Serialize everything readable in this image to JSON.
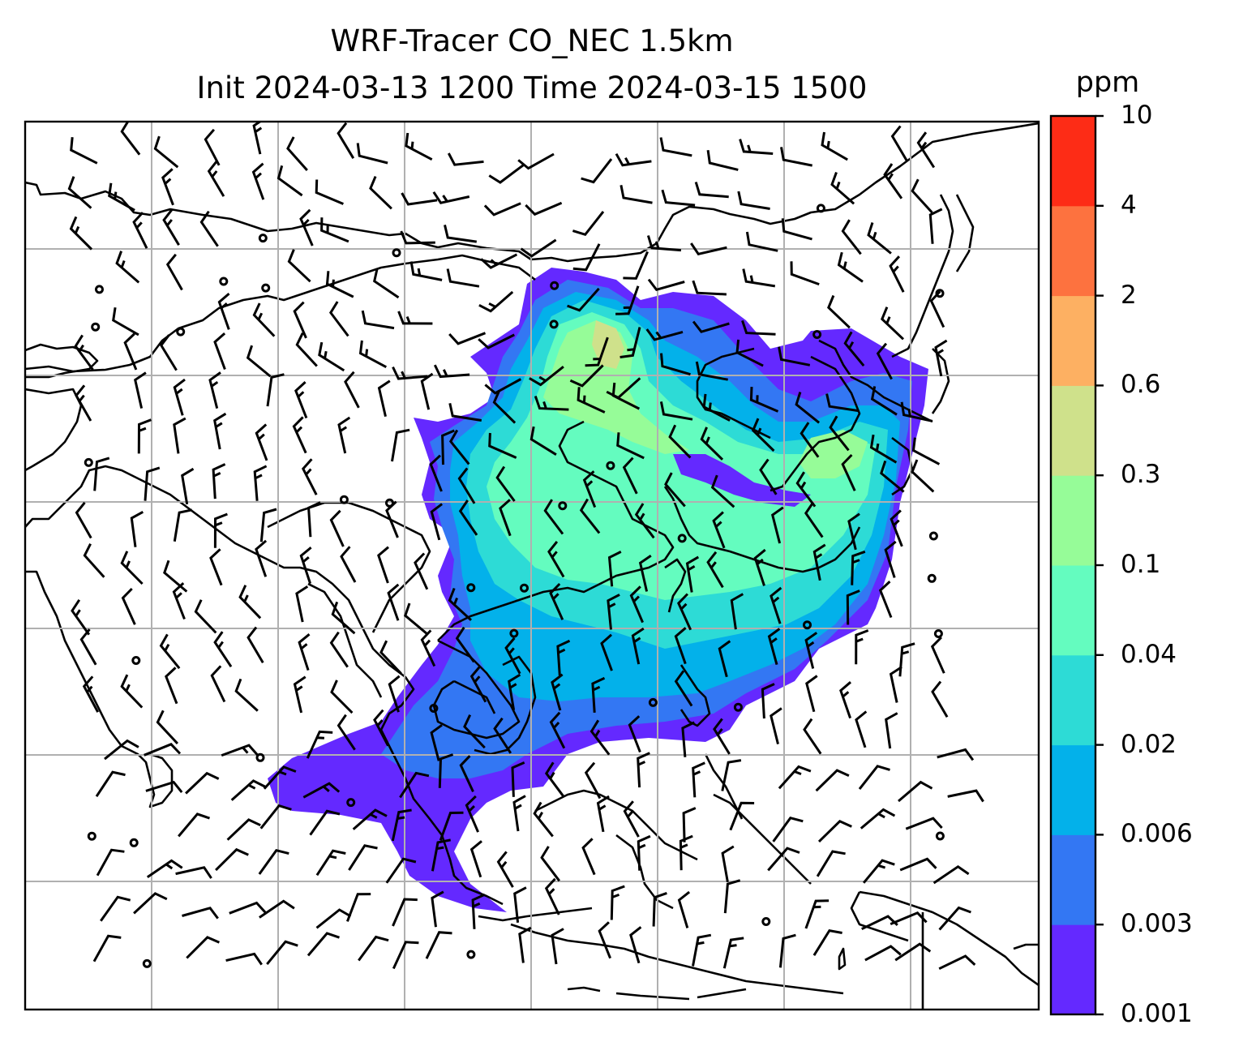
{
  "figure": {
    "title_line1": "WRF-Tracer CO_NEC 1.5km",
    "title_line2": "Init 2024-03-13 1200 Time 2024-03-15 1500"
  },
  "colorbar": {
    "unit": "ppm",
    "ticks": [
      "0.001",
      "0.003",
      "0.006",
      "0.02",
      "0.04",
      "0.1",
      "0.3",
      "0.6",
      "2",
      "4",
      "10"
    ],
    "colors": [
      "#6429ff",
      "#3377f3",
      "#03b1ea",
      "#2ddbd6",
      "#64fcbf",
      "#96fc98",
      "#cfe18b",
      "#fdb062",
      "#fd723f",
      "#fd2c16"
    ]
  },
  "map": {
    "region": "East and Southeast Asia",
    "gridlines": true,
    "overlay": "wind barbs"
  }
}
